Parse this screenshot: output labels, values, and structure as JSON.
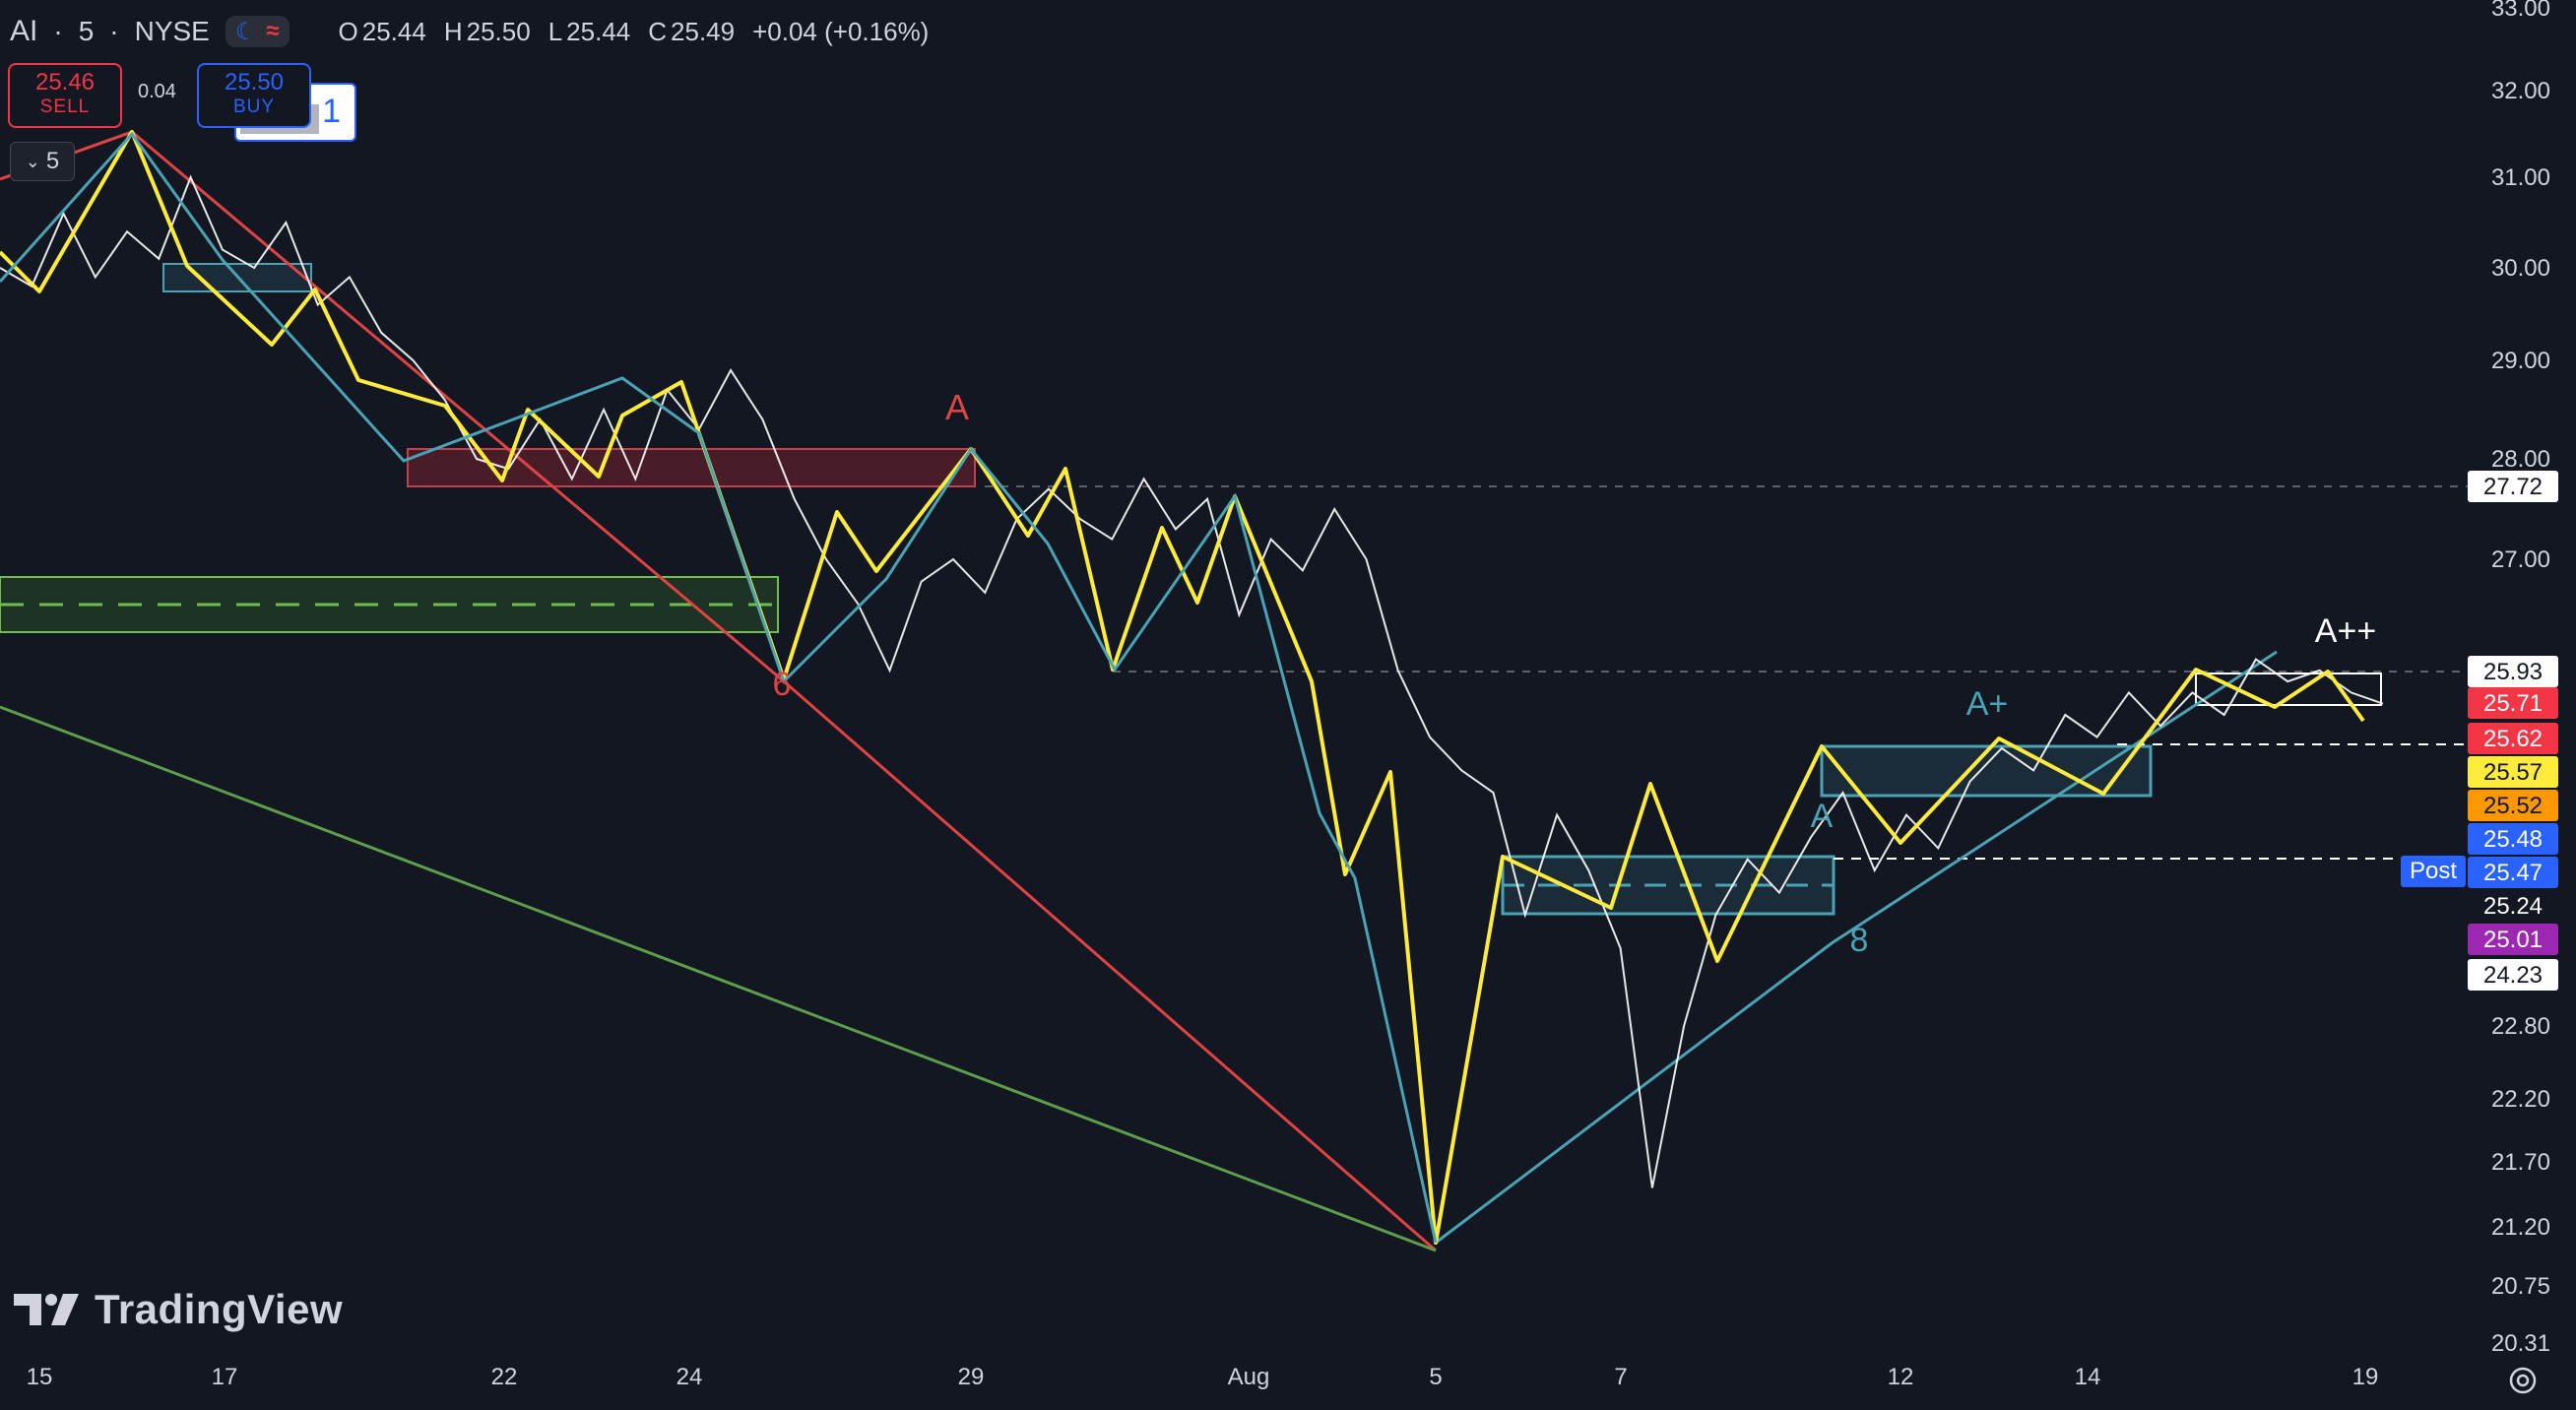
{
  "header": {
    "symbol": "AI",
    "interval": "5",
    "exchange": "NYSE",
    "open_label": "O",
    "open": "25.44",
    "high_label": "H",
    "high": "25.50",
    "low_label": "L",
    "low": "25.44",
    "close_label": "C",
    "close": "25.49",
    "change": "+0.04 (+0.16%)"
  },
  "trade": {
    "sell_price": "25.46",
    "sell_label": "SELL",
    "buy_price": "25.50",
    "buy_label": "BUY",
    "spread": "0.04",
    "partial_label": "1"
  },
  "interval_button": {
    "label": "5"
  },
  "branding": {
    "name": "TradingView"
  },
  "colors": {
    "background": "#131722",
    "price_line": "#ffffff",
    "zigzag_yellow": "#ffeb3b",
    "zigzag_teal": "#4aa3b5",
    "trend_red": "#e04343",
    "trend_green": "#5c9e4a",
    "zone_red": "#8b2631",
    "zone_green": "#3e7a2e",
    "zone_teal": "#4aa3b5"
  },
  "chart_data": {
    "type": "line",
    "yaxis_ticks": [
      "33.00",
      "32.00",
      "31.00",
      "30.00",
      "29.00",
      "28.00",
      "27.00",
      "22.80",
      "22.20",
      "21.70",
      "21.20",
      "20.75",
      "20.31"
    ],
    "xaxis_ticks": [
      "15",
      "17",
      "22",
      "24",
      "29",
      "Aug",
      "5",
      "7",
      "12",
      "14",
      "19"
    ],
    "series": [
      {
        "name": "",
        "values": [
          30.0,
          29.8,
          30.6,
          29.9,
          30.4,
          30.1,
          31.0,
          30.2,
          30.0,
          30.5,
          29.6,
          29.9,
          29.3,
          29.0,
          28.6,
          28.0,
          27.9,
          28.4,
          27.8,
          28.5,
          27.8,
          28.7,
          28.3,
          28.9,
          28.4,
          27.6,
          27.0,
          26.6,
          26.0,
          26.8,
          27.0,
          26.7,
          27.4,
          27.7,
          27.4,
          27.2,
          27.8,
          27.3,
          27.6,
          26.5,
          27.2,
          26.9,
          27.5,
          27.0,
          26.0,
          25.4,
          25.1,
          24.9,
          23.8,
          24.7,
          24.2,
          23.5,
          21.5,
          22.8,
          23.8,
          24.3,
          24.0,
          24.5,
          24.9,
          24.2,
          24.7,
          24.4,
          25.0,
          25.3,
          25.1,
          25.6,
          25.4,
          25.8,
          25.5,
          25.8,
          25.6,
          26.1,
          25.9,
          26.0,
          25.8,
          25.7
        ]
      }
    ],
    "markers": [
      "A",
      "6",
      "A",
      "A+",
      "A++",
      "8"
    ],
    "price_labels": [
      {
        "value": "27.72",
        "bg": "#ffffff",
        "fg": "#131722"
      },
      {
        "value": "25.93",
        "bg": "#ffffff",
        "fg": "#131722"
      },
      {
        "value": "25.71",
        "bg": "#f23645",
        "fg": "#ffffff"
      },
      {
        "value": "25.62",
        "bg": "#f23645",
        "fg": "#ffffff"
      },
      {
        "value": "25.57",
        "bg": "#ffeb3b",
        "fg": "#131722"
      },
      {
        "value": "25.52",
        "bg": "#ff9800",
        "fg": "#131722"
      },
      {
        "value": "25.48",
        "bg": "#2962ff",
        "fg": "#ffffff"
      },
      {
        "value": "25.47",
        "bg": "#2962ff",
        "fg": "#ffffff"
      },
      {
        "value": "25.24",
        "bg": "#131722",
        "fg": "#ffffff"
      },
      {
        "value": "25.01",
        "bg": "#9c27b0",
        "fg": "#ffffff"
      },
      {
        "value": "24.23",
        "bg": "#ffffff",
        "fg": "#131722"
      }
    ],
    "post_label": "Post",
    "grid": false
  }
}
